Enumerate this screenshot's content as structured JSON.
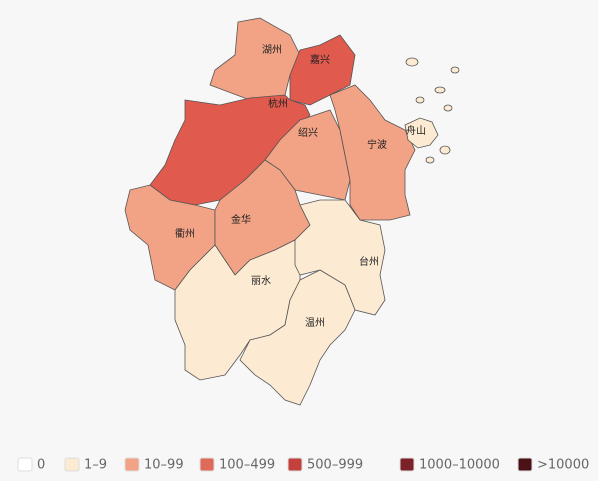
{
  "map": {
    "regions": [
      {
        "name": "湖州",
        "color": "#f2a386"
      },
      {
        "name": "嘉兴",
        "color": "#e05a4e"
      },
      {
        "name": "杭州",
        "color": "#e05a4e"
      },
      {
        "name": "绍兴",
        "color": "#f2a386"
      },
      {
        "name": "宁波",
        "color": "#f2a386"
      },
      {
        "name": "衢州",
        "color": "#f2a386"
      },
      {
        "name": "金华",
        "color": "#f2a386"
      },
      {
        "name": "丽水",
        "color": "#fcebd2"
      },
      {
        "name": "台州",
        "color": "#fcebd2"
      },
      {
        "name": "温州",
        "color": "#fcebd2"
      },
      {
        "name": "舟山",
        "color": "#fcebd2"
      }
    ]
  },
  "legend": [
    {
      "label": "0",
      "color": "#ffffff"
    },
    {
      "label": "1–9",
      "color": "#fcebd2"
    },
    {
      "label": "10–99",
      "color": "#f2a386"
    },
    {
      "label": "100–499",
      "color": "#e06a5a"
    },
    {
      "label": "500–999",
      "color": "#c3403c"
    },
    {
      "label": "1000–10000",
      "color": "#7a2228"
    },
    {
      "label": ">10000",
      "color": "#4a1216"
    }
  ]
}
